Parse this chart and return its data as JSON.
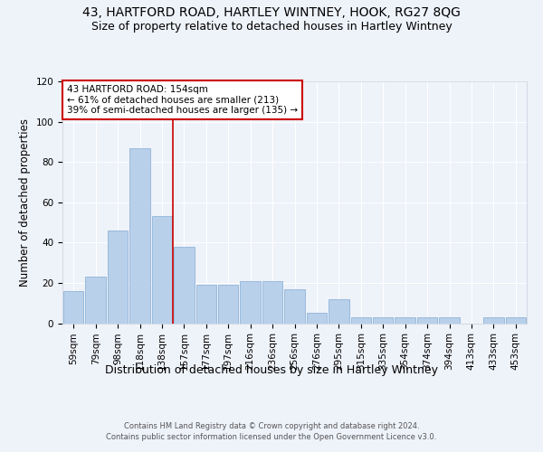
{
  "title1": "43, HARTFORD ROAD, HARTLEY WINTNEY, HOOK, RG27 8QG",
  "title2": "Size of property relative to detached houses in Hartley Wintney",
  "xlabel": "Distribution of detached houses by size in Hartley Wintney",
  "ylabel": "Number of detached properties",
  "categories": [
    "59sqm",
    "79sqm",
    "98sqm",
    "118sqm",
    "138sqm",
    "157sqm",
    "177sqm",
    "197sqm",
    "216sqm",
    "236sqm",
    "256sqm",
    "276sqm",
    "295sqm",
    "315sqm",
    "335sqm",
    "354sqm",
    "374sqm",
    "394sqm",
    "413sqm",
    "433sqm",
    "453sqm"
  ],
  "values": [
    16,
    23,
    46,
    87,
    53,
    38,
    19,
    19,
    21,
    21,
    17,
    5,
    12,
    3,
    3,
    3,
    3,
    3,
    0,
    3,
    3
  ],
  "bar_color": "#b8d0ea",
  "bar_edge_color": "#90b4d8",
  "ref_line_label": "43 HARTFORD ROAD: 154sqm",
  "annotation_line2": "← 61% of detached houses are smaller (213)",
  "annotation_line3": "39% of semi-detached houses are larger (135) →",
  "annotation_box_color": "#ffffff",
  "annotation_box_edge_color": "#cc0000",
  "ref_line_color": "#cc0000",
  "ylim": [
    0,
    120
  ],
  "yticks": [
    0,
    20,
    40,
    60,
    80,
    100,
    120
  ],
  "footer1": "Contains HM Land Registry data © Crown copyright and database right 2024.",
  "footer2": "Contains public sector information licensed under the Open Government Licence v3.0.",
  "bg_color": "#eef2f9",
  "plot_bg_color": "#eef2f9",
  "title_fontsize": 10,
  "subtitle_fontsize": 9,
  "tick_fontsize": 7.5,
  "ylabel_fontsize": 8.5,
  "xlabel_fontsize": 9,
  "footer_fontsize": 6,
  "annot_fontsize": 7.5
}
